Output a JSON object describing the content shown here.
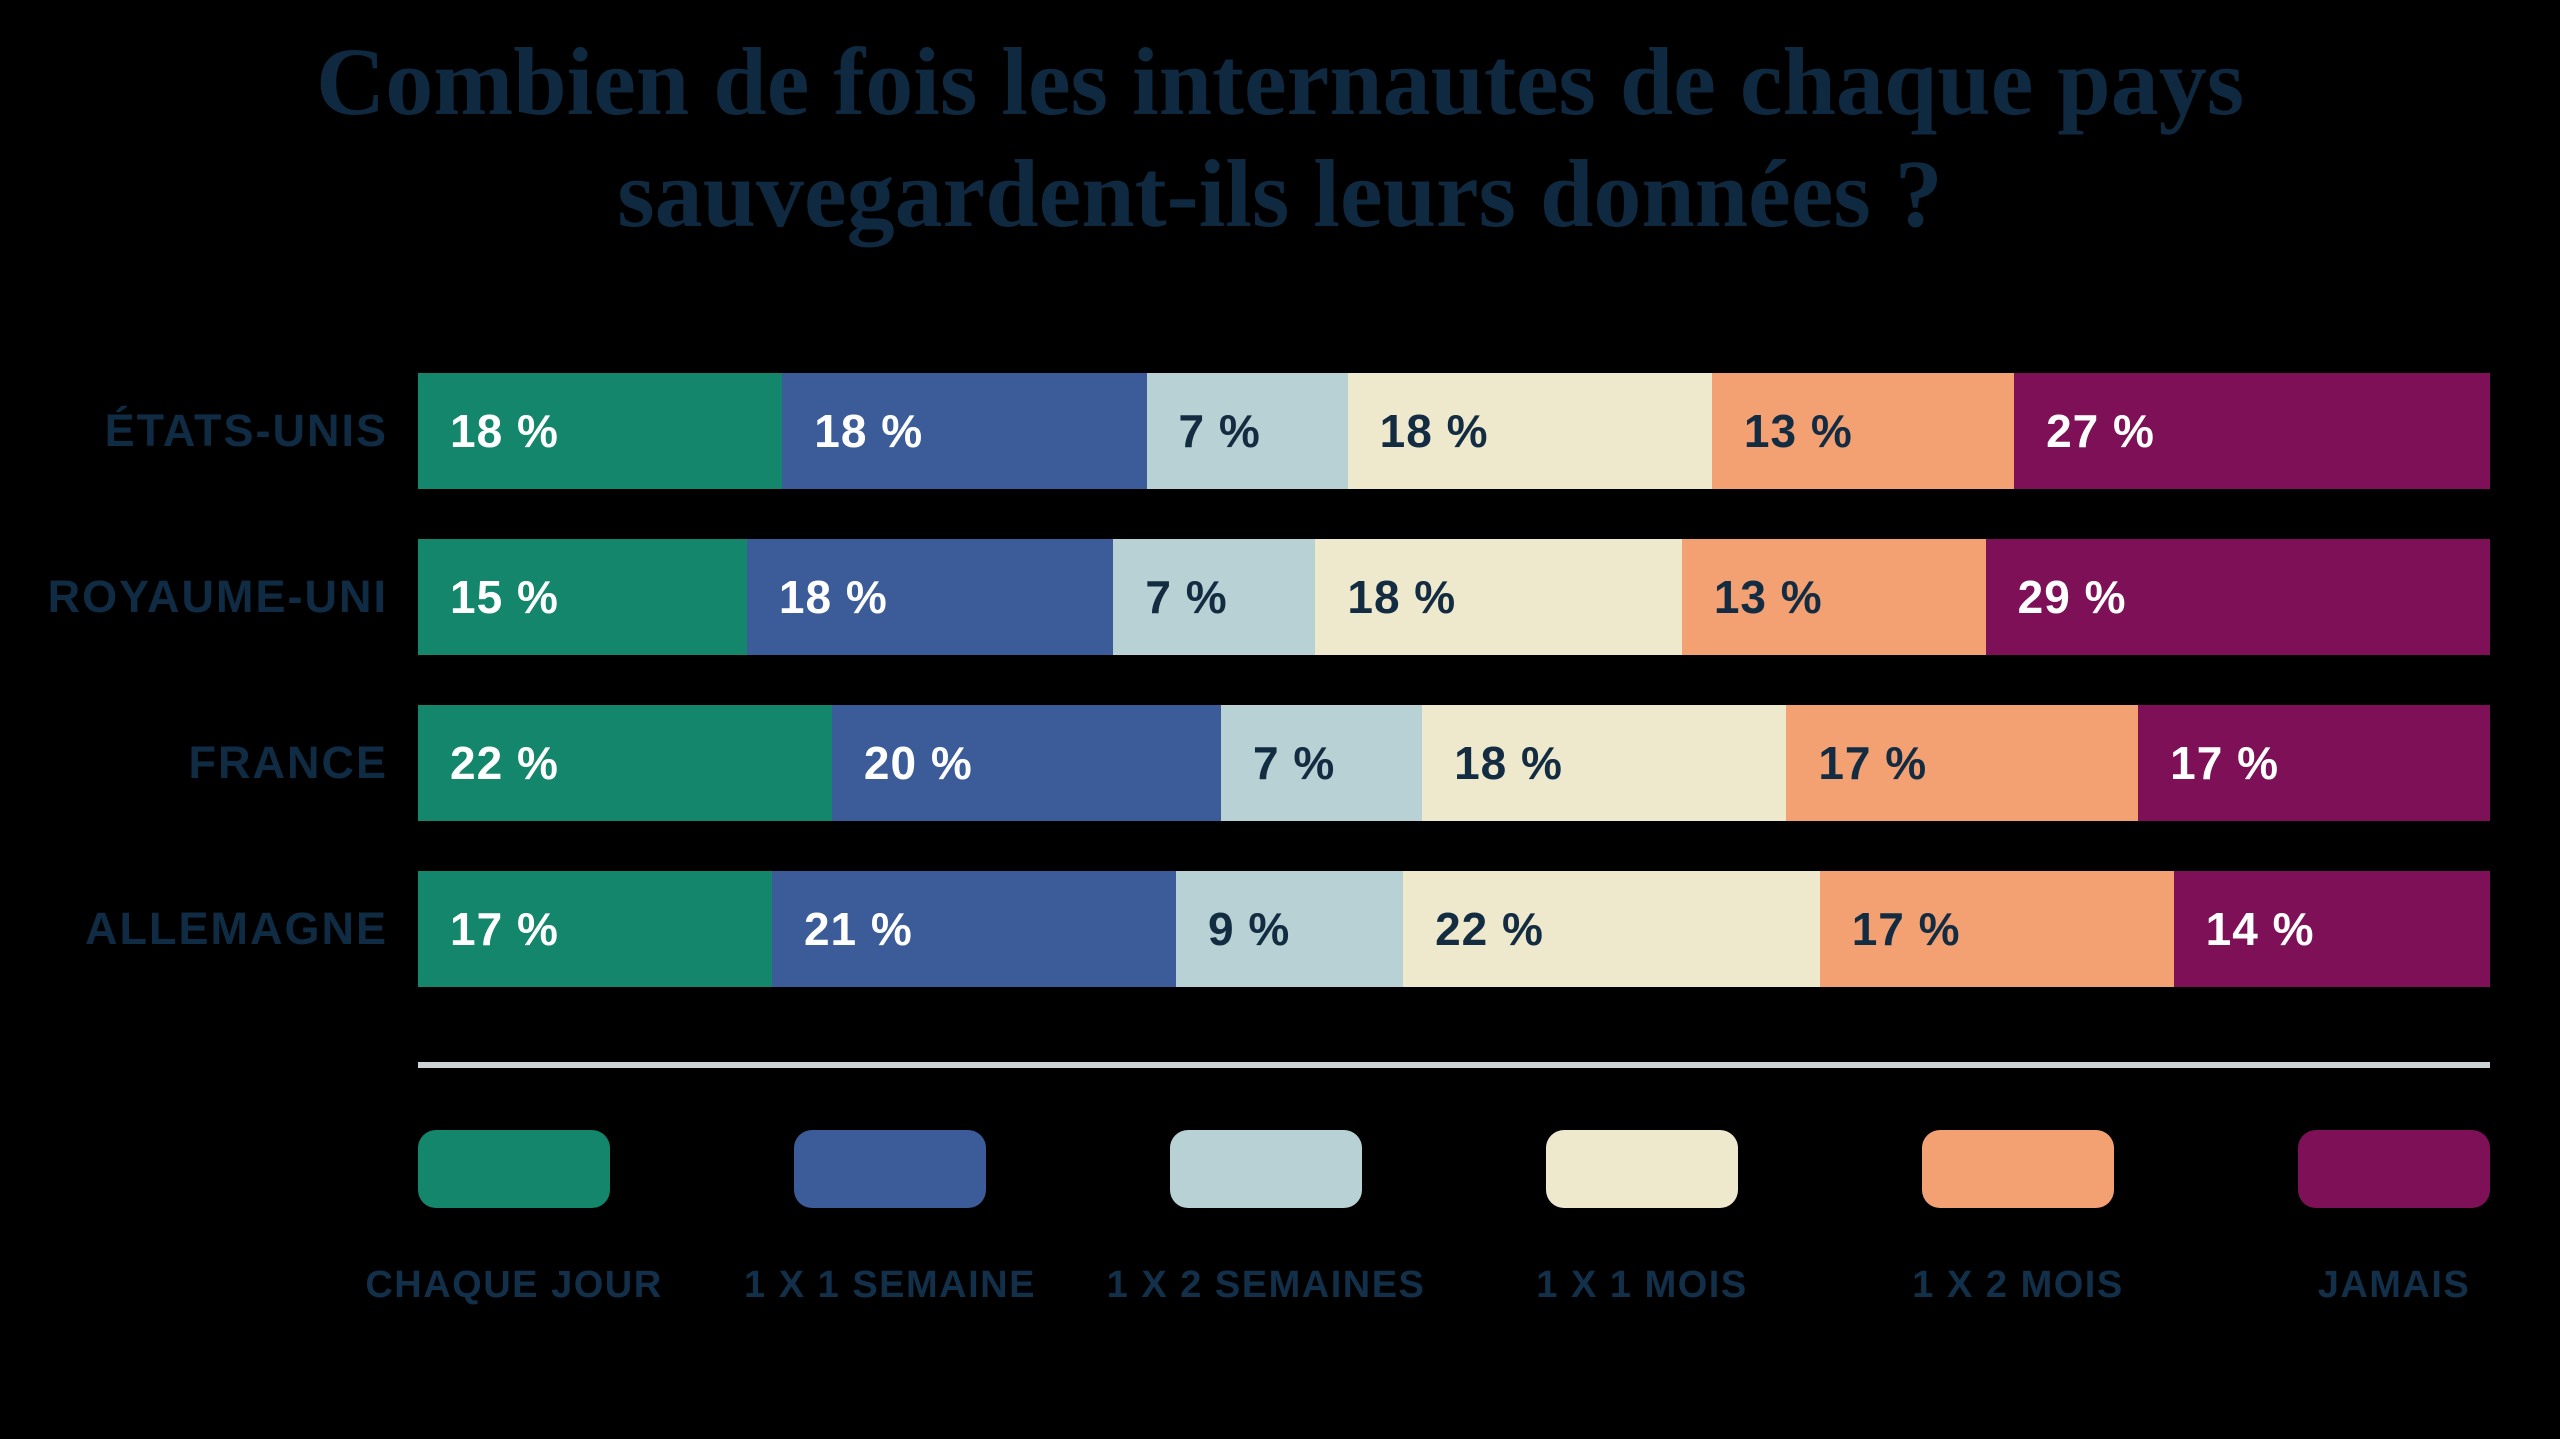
{
  "title": "Combien de fois les internautes de chaque pays sauvegardent-ils leurs données ?",
  "colors": {
    "background": "#000000",
    "title_text": "#0e2940",
    "category_label_text": "#0f2c44",
    "legend_label_text": "#12304a",
    "divider": "#cdd2d3",
    "label_on_dark": "#ffffff",
    "label_on_light": "#132c42"
  },
  "chart_data": {
    "type": "bar",
    "orientation": "horizontal",
    "stacked": true,
    "unit": "%",
    "value_label_format": "{value} %",
    "title": "Combien de fois les internautes de chaque pays sauvegardent-ils leurs données ?",
    "categories": [
      "ÉTATS-UNIS",
      "ROYAUME-UNI",
      "FRANCE",
      "ALLEMAGNE"
    ],
    "series": [
      {
        "name": "CHAQUE JOUR",
        "color": "#13866b",
        "text": "#ffffff",
        "values": [
          18,
          15,
          22,
          17
        ]
      },
      {
        "name": "1 X 1 SEMAINE",
        "color": "#3b5c99",
        "text": "#ffffff",
        "values": [
          18,
          18,
          20,
          21
        ]
      },
      {
        "name": "1 X 2 SEMAINES",
        "color": "#b7d1d4",
        "text": "#132c42",
        "values": [
          7,
          7,
          7,
          9
        ]
      },
      {
        "name": "1 X 1 MOIS",
        "color": "#eee9cd",
        "text": "#132c42",
        "values": [
          18,
          18,
          18,
          22
        ]
      },
      {
        "name": "1 X 2 MOIS",
        "color": "#f3a173",
        "text": "#132c42",
        "values": [
          13,
          13,
          17,
          17
        ]
      },
      {
        "name": "JAMAIS",
        "color": "#7d1056",
        "text": "#ffffff",
        "values": [
          27,
          29,
          17,
          14
        ]
      }
    ],
    "legend_position": "bottom",
    "grid": false,
    "axes_visible": false
  }
}
